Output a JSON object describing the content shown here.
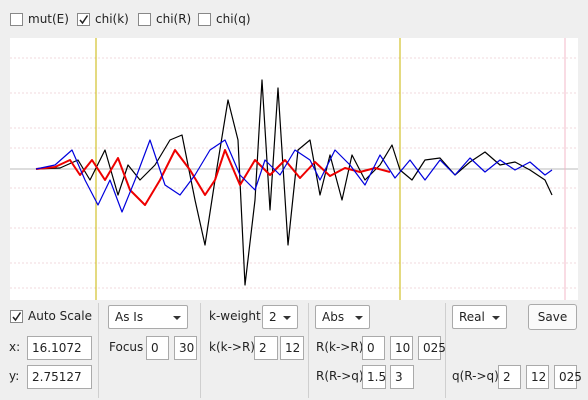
{
  "checkboxes": [
    {
      "label": "mut(E)",
      "checked": false
    },
    {
      "label": "chi(k)",
      "checked": true
    },
    {
      "label": "chi(R)",
      "checked": false
    },
    {
      "label": "chi(q)",
      "checked": false
    }
  ],
  "controls": {
    "auto_scale": {
      "label": "Auto Scale",
      "checked": true
    },
    "x": {
      "label": "x:",
      "value": "16.1072"
    },
    "y": {
      "label": "y:",
      "value": "2.75127"
    },
    "window_select": "As Is",
    "focus": {
      "label": "Focus",
      "values": [
        "0",
        "30"
      ]
    },
    "k_weight": {
      "label": "k-weight",
      "value": "2"
    },
    "k_range": {
      "label": "k(k->R)",
      "values": [
        "2",
        "12"
      ]
    },
    "r_part": "Abs",
    "r_range": {
      "label": "R(k->R)",
      "values": [
        "0",
        "10",
        "025"
      ]
    },
    "r_q_range": {
      "label": "R(R->q)",
      "values": [
        "1.5",
        "3"
      ]
    },
    "q_part": "Real",
    "save": "Save",
    "q_range": {
      "label": "q(R->q)",
      "values": [
        "2",
        "12",
        "025"
      ]
    }
  }
}
